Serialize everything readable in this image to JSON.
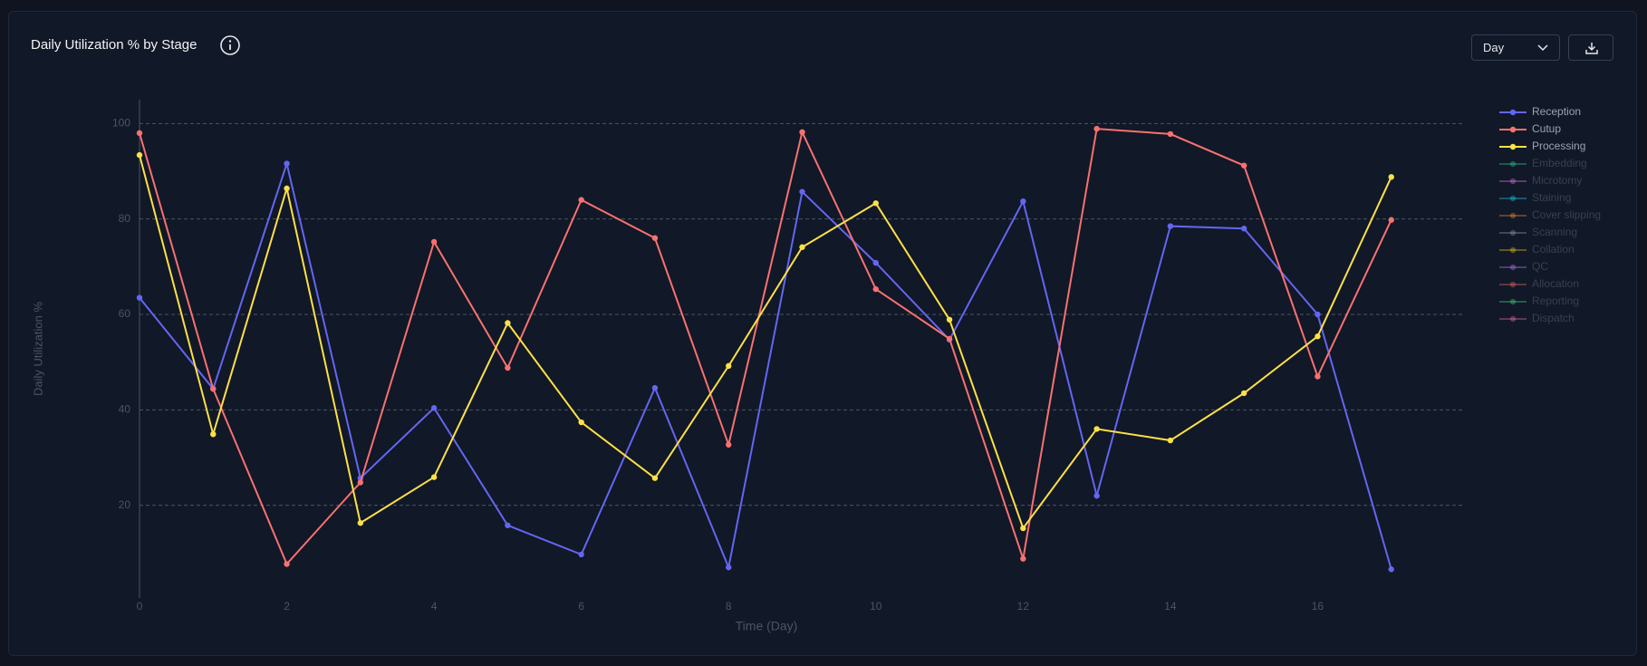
{
  "chart_data": {
    "type": "line",
    "title": "Daily Utilization % by Stage",
    "x_label": "Time (Day)",
    "y_label": "Daily Utilization %",
    "x": [
      0,
      1,
      2,
      3,
      4,
      5,
      6,
      7,
      8,
      9,
      10,
      11,
      12,
      13,
      14,
      15,
      16,
      17
    ],
    "xlim": [
      0,
      18
    ],
    "xticks": [
      0,
      2,
      4,
      6,
      8,
      10,
      12,
      14,
      16
    ],
    "ylim": [
      0,
      105
    ],
    "yticks": [
      20,
      40,
      60,
      80,
      100
    ],
    "grid": true,
    "legend": "right",
    "series": [
      {
        "name": "Reception",
        "color": "#6366f1",
        "values": [
          63.5,
          44.4,
          91.6,
          25.7,
          40.4,
          15.8,
          9.7,
          44.6,
          7.0,
          85.7,
          70.8,
          54.7,
          83.7,
          22.0,
          78.5,
          78.0,
          60.0,
          6.6
        ]
      },
      {
        "name": "Cutup",
        "color": "#f87171",
        "values": [
          98.0,
          44.4,
          7.7,
          24.8,
          75.2,
          48.8,
          84.0,
          76.0,
          32.7,
          98.2,
          65.3,
          54.9,
          8.8,
          98.9,
          97.8,
          91.2,
          47.0,
          79.8
        ]
      },
      {
        "name": "Processing",
        "color": "#fde047",
        "values": [
          93.4,
          34.9,
          86.4,
          16.3,
          25.9,
          58.2,
          37.4,
          25.7,
          49.2,
          74.1,
          83.3,
          58.9,
          15.2,
          36.0,
          33.6,
          43.5,
          55.4,
          88.8
        ]
      },
      {
        "name": "Embedding",
        "color": "#34d399",
        "visible": false
      },
      {
        "name": "Microtomy",
        "color": "#e879f9",
        "visible": false
      },
      {
        "name": "Staining",
        "color": "#22d3ee",
        "visible": false
      },
      {
        "name": "Cover slipping",
        "color": "#fb923c",
        "visible": false
      },
      {
        "name": "Scanning",
        "color": "#94a3b8",
        "visible": false
      },
      {
        "name": "Collation",
        "color": "#facc15",
        "visible": false
      },
      {
        "name": "QC",
        "color": "#c084fc",
        "visible": false
      },
      {
        "name": "Allocation",
        "color": "#f87171",
        "visible": false
      },
      {
        "name": "Reporting",
        "color": "#4ade80",
        "visible": false
      },
      {
        "name": "Dispatch",
        "color": "#f472b6",
        "visible": false
      }
    ]
  },
  "controls": {
    "granularity": "Day"
  }
}
